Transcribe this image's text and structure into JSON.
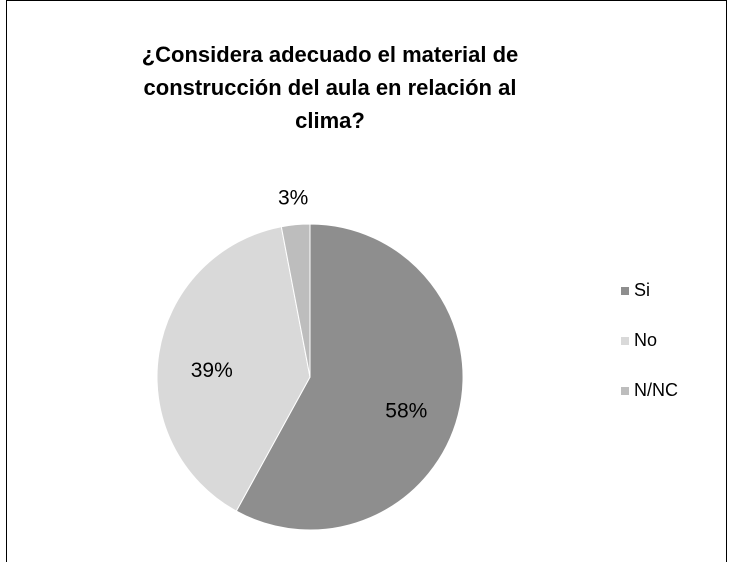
{
  "chart_data": {
    "type": "pie",
    "title": "¿Considera adecuado el material de construcción del aula en relación al clima?",
    "categories": [
      "Si",
      "No",
      "N/NC"
    ],
    "values": [
      58,
      39,
      3
    ],
    "value_labels": [
      "58%",
      "39%",
      "3%"
    ],
    "colors": [
      "#8e8e8e",
      "#d9d9d9",
      "#bdbdbd"
    ],
    "legend": "right"
  }
}
